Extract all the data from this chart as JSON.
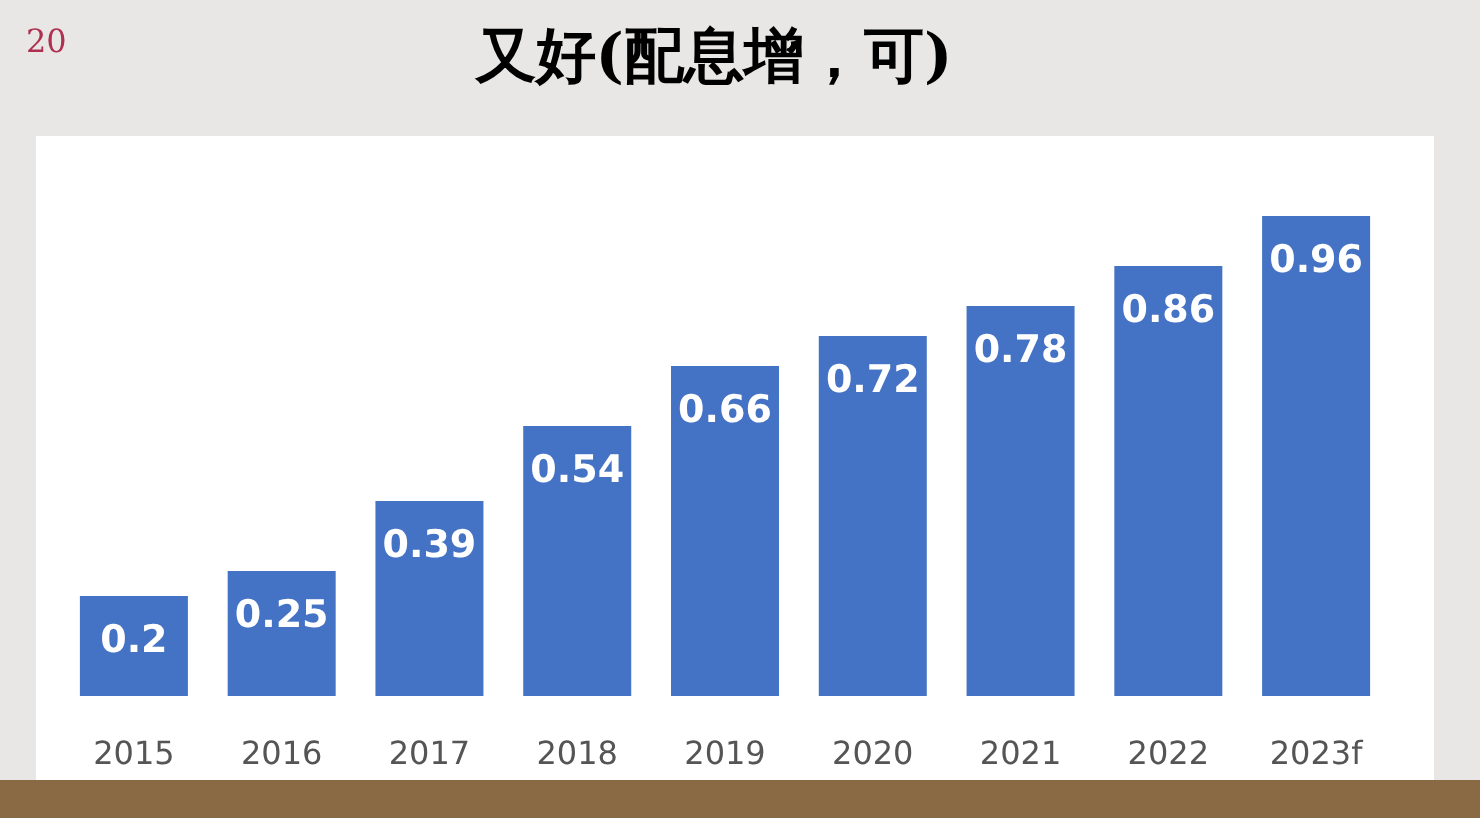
{
  "chart_data": {
    "type": "bar",
    "title": "又好(配息增，可)",
    "categories": [
      "2015",
      "2016",
      "2017",
      "2018",
      "2019",
      "2020",
      "2021",
      "2022",
      "2023f"
    ],
    "values": [
      0.2,
      0.25,
      0.39,
      0.54,
      0.66,
      0.72,
      0.78,
      0.86,
      0.96
    ],
    "color": "#4472c4",
    "data_labels": true,
    "annotations": [
      "20"
    ]
  }
}
